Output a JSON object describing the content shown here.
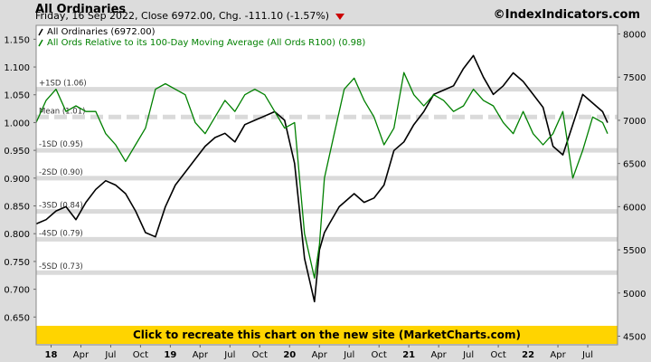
{
  "header": {
    "title": "All Ordinaries",
    "subtitle": "Friday, 16 Sep 2022, Close 6972.00, Chg. -111.10 (-1.57%)",
    "site": "©IndexIndicators.com",
    "down_arrow_color": "#cc0000"
  },
  "cta": {
    "text": "Click to recreate this chart on the new site (MarketCharts.com)",
    "color": "#ffd400"
  },
  "colors": {
    "price": "#000000",
    "ratio": "#008000",
    "plot_bg": "#ffffff",
    "band": "#dadada",
    "frame_bg": "#dcdcdc"
  },
  "chart_data": {
    "type": "line",
    "x_ticks": [
      "18",
      "Apr",
      "Jul",
      "Oct",
      "19",
      "Apr",
      "Jul",
      "Oct",
      "20",
      "Apr",
      "Jul",
      "Oct",
      "21",
      "Apr",
      "Jul",
      "Oct",
      "22",
      "Apr",
      "Jul"
    ],
    "x_range": [
      0,
      58.5
    ],
    "left_axis": {
      "ticks": [
        "1.150",
        "1.100",
        "1.050",
        "1.000",
        "0.950",
        "0.900",
        "0.850",
        "0.800",
        "0.750",
        "0.700",
        "0.650"
      ],
      "range": [
        0.6,
        1.175
      ]
    },
    "right_axis": {
      "ticks": [
        "8000",
        "7500",
        "7000",
        "6500",
        "6000",
        "5500",
        "5000",
        "4500"
      ],
      "range": [
        4400,
        8100
      ]
    },
    "bands": [
      {
        "label": "+1SD (1.06)",
        "value": 1.06
      },
      {
        "label": "Mean (1.01)",
        "value": 1.01,
        "dashed": true
      },
      {
        "label": "-1SD (0.95)",
        "value": 0.95
      },
      {
        "label": "-2SD (0.90)",
        "value": 0.9
      },
      {
        "label": "-3SD (0.84)",
        "value": 0.84
      },
      {
        "label": "-4SD (0.79)",
        "value": 0.79
      },
      {
        "label": "-5SD (0.73)",
        "value": 0.73
      }
    ],
    "series": [
      {
        "name": "All Ordinaries (6972.00)",
        "axis": "right",
        "x": [
          0,
          1,
          2,
          3,
          4,
          5,
          6,
          7,
          8,
          9,
          10,
          11,
          12,
          13,
          14,
          15,
          16,
          17,
          18,
          19,
          20,
          21,
          22,
          23,
          24,
          25,
          26,
          27,
          28,
          28.5,
          29,
          29.5,
          30,
          30.5,
          31,
          32,
          33,
          34,
          35,
          36,
          37,
          38,
          39,
          40,
          41,
          42,
          43,
          44,
          45,
          46,
          47,
          48,
          49,
          50,
          51,
          52,
          53,
          54,
          55,
          56,
          57,
          57.5
        ],
        "values": [
          5800,
          5850,
          5950,
          6000,
          5850,
          6050,
          6200,
          6300,
          6250,
          6150,
          5950,
          5700,
          5650,
          6000,
          6250,
          6400,
          6550,
          6700,
          6800,
          6850,
          6750,
          6950,
          7000,
          7050,
          7100,
          7000,
          6500,
          5400,
          4900,
          5500,
          5700,
          5800,
          5900,
          6000,
          6050,
          6150,
          6050,
          6100,
          6250,
          6650,
          6750,
          6950,
          7100,
          7300,
          7350,
          7400,
          7600,
          7750,
          7500,
          7300,
          7400,
          7550,
          7450,
          7300,
          7150,
          6700,
          6600,
          6950,
          7300,
          7200,
          7100,
          6972
        ]
      },
      {
        "name": "All Ords Relative to its 100-Day Moving Average (All Ords R100) (0.98)",
        "axis": "left",
        "x": [
          0,
          1,
          2,
          3,
          4,
          5,
          6,
          7,
          8,
          9,
          10,
          11,
          12,
          13,
          14,
          15,
          16,
          17,
          18,
          19,
          20,
          21,
          22,
          23,
          24,
          25,
          26,
          27,
          28,
          28.5,
          29,
          29.5,
          30,
          30.5,
          31,
          32,
          33,
          34,
          35,
          36,
          37,
          38,
          39,
          40,
          41,
          42,
          43,
          44,
          45,
          46,
          47,
          48,
          49,
          50,
          51,
          52,
          53,
          54,
          55,
          56,
          57,
          57.5
        ],
        "values": [
          1.0,
          1.04,
          1.06,
          1.02,
          1.03,
          1.02,
          1.02,
          0.98,
          0.96,
          0.93,
          0.96,
          0.99,
          1.06,
          1.07,
          1.06,
          1.05,
          1.0,
          0.98,
          1.01,
          1.04,
          1.02,
          1.05,
          1.06,
          1.05,
          1.02,
          0.99,
          1.0,
          0.8,
          0.72,
          0.78,
          0.9,
          0.94,
          0.98,
          1.02,
          1.06,
          1.08,
          1.04,
          1.01,
          0.96,
          0.99,
          1.09,
          1.05,
          1.03,
          1.05,
          1.04,
          1.02,
          1.03,
          1.06,
          1.04,
          1.03,
          1.0,
          0.98,
          1.02,
          0.98,
          0.96,
          0.98,
          1.02,
          0.9,
          0.95,
          1.01,
          1.0,
          0.98
        ]
      }
    ],
    "legend_position": "top-left",
    "grid": false
  }
}
